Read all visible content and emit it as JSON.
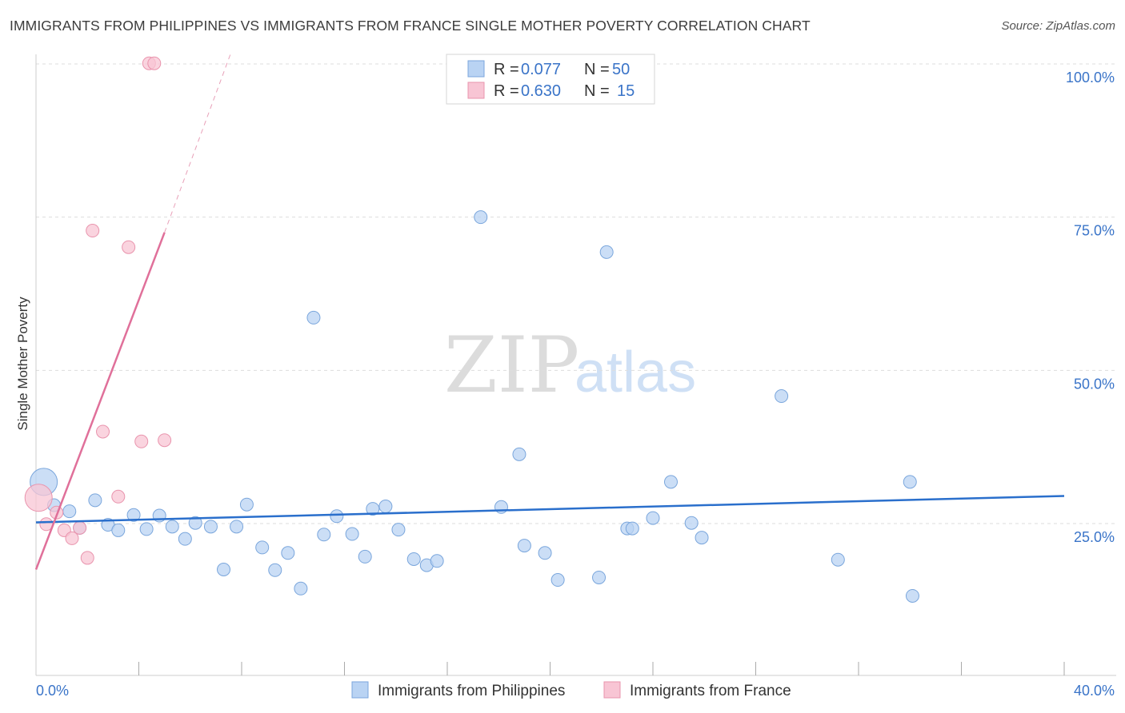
{
  "title": "IMMIGRANTS FROM PHILIPPINES VS IMMIGRANTS FROM FRANCE SINGLE MOTHER POVERTY CORRELATION CHART",
  "source": "Source: ZipAtlas.com",
  "watermark": {
    "zip": "ZIP",
    "atlas": "atlas"
  },
  "colors": {
    "blue_fill": "#b9d3f3",
    "blue_stroke": "#7aa6dc",
    "blue_line": "#2a6fcc",
    "pink_fill": "#f8c5d4",
    "pink_stroke": "#e994ad",
    "pink_line": "#e0709a",
    "grid": "#dddddd",
    "tick_text": "#3a74c8"
  },
  "legend": {
    "row1": {
      "r_label": "R = ",
      "r_value": "0.077",
      "n_label": "N = ",
      "n_value": "50"
    },
    "row2": {
      "r_label": "R = ",
      "r_value": "0.630",
      "n_label": "N = ",
      "n_value": "15"
    }
  },
  "chart_data": {
    "type": "scatter",
    "title": "IMMIGRANTS FROM PHILIPPINES VS IMMIGRANTS FROM FRANCE SINGLE MOTHER POVERTY CORRELATION CHART",
    "xlabel": "",
    "ylabel": "Single Mother Poverty",
    "xlim": [
      0,
      40
    ],
    "ylim": [
      0,
      105
    ],
    "x_tick_labels": [
      "0.0%",
      "40.0%"
    ],
    "y_ticks": [
      {
        "value": 25,
        "label": "25.0%"
      },
      {
        "value": 50,
        "label": "50.0%"
      },
      {
        "value": 75,
        "label": "75.0%"
      },
      {
        "value": 100,
        "label": "100.0%"
      }
    ],
    "series": [
      {
        "name": "Immigrants from Philippines",
        "color": "#b9d3f3",
        "r": 0.077,
        "n": 50,
        "trend": {
          "x": [
            0,
            40
          ],
          "y": [
            25.2,
            29.5
          ]
        },
        "points": [
          {
            "x": 0.3,
            "y": 31.8,
            "big": true
          },
          {
            "x": 0.7,
            "y": 28.0
          },
          {
            "x": 1.3,
            "y": 27.0
          },
          {
            "x": 1.7,
            "y": 24.3
          },
          {
            "x": 2.3,
            "y": 28.8
          },
          {
            "x": 2.8,
            "y": 24.8
          },
          {
            "x": 3.2,
            "y": 23.9
          },
          {
            "x": 3.8,
            "y": 26.4
          },
          {
            "x": 4.3,
            "y": 24.1
          },
          {
            "x": 4.8,
            "y": 26.3
          },
          {
            "x": 5.3,
            "y": 24.5
          },
          {
            "x": 5.8,
            "y": 22.5
          },
          {
            "x": 6.2,
            "y": 25.1
          },
          {
            "x": 6.8,
            "y": 24.5
          },
          {
            "x": 7.3,
            "y": 17.5
          },
          {
            "x": 7.8,
            "y": 24.5
          },
          {
            "x": 8.2,
            "y": 28.1
          },
          {
            "x": 8.8,
            "y": 21.1
          },
          {
            "x": 9.3,
            "y": 17.4
          },
          {
            "x": 9.8,
            "y": 20.2
          },
          {
            "x": 10.3,
            "y": 14.4
          },
          {
            "x": 10.8,
            "y": 58.6
          },
          {
            "x": 11.2,
            "y": 23.2
          },
          {
            "x": 11.7,
            "y": 26.2
          },
          {
            "x": 12.3,
            "y": 23.3
          },
          {
            "x": 12.8,
            "y": 19.6
          },
          {
            "x": 13.1,
            "y": 27.4
          },
          {
            "x": 13.6,
            "y": 27.8
          },
          {
            "x": 14.1,
            "y": 24.0
          },
          {
            "x": 14.7,
            "y": 19.2
          },
          {
            "x": 15.2,
            "y": 18.2
          },
          {
            "x": 15.6,
            "y": 18.9
          },
          {
            "x": 17.3,
            "y": 75.0
          },
          {
            "x": 18.1,
            "y": 27.7
          },
          {
            "x": 18.8,
            "y": 36.3
          },
          {
            "x": 19.0,
            "y": 21.4
          },
          {
            "x": 19.8,
            "y": 20.2
          },
          {
            "x": 20.3,
            "y": 15.8
          },
          {
            "x": 21.9,
            "y": 16.2
          },
          {
            "x": 22.2,
            "y": 69.3
          },
          {
            "x": 23.0,
            "y": 24.2
          },
          {
            "x": 23.2,
            "y": 24.2
          },
          {
            "x": 24.0,
            "y": 25.9
          },
          {
            "x": 24.7,
            "y": 31.8
          },
          {
            "x": 25.5,
            "y": 25.1
          },
          {
            "x": 25.9,
            "y": 22.7
          },
          {
            "x": 29.0,
            "y": 45.8
          },
          {
            "x": 31.2,
            "y": 19.1
          },
          {
            "x": 34.0,
            "y": 31.8
          },
          {
            "x": 34.1,
            "y": 13.2
          }
        ]
      },
      {
        "name": "Immigrants from France",
        "color": "#f8c5d4",
        "r": 0.63,
        "n": 15,
        "trend": {
          "x": [
            0,
            5.0
          ],
          "y": [
            17.5,
            72.5
          ]
        },
        "trend_dashed": {
          "x": [
            5.0,
            7.6
          ],
          "y": [
            72.5,
            102
          ]
        },
        "points": [
          {
            "x": 0.1,
            "y": 29.2,
            "big": true
          },
          {
            "x": 0.4,
            "y": 24.9
          },
          {
            "x": 0.8,
            "y": 26.8
          },
          {
            "x": 1.1,
            "y": 23.9
          },
          {
            "x": 1.4,
            "y": 22.6
          },
          {
            "x": 1.7,
            "y": 24.3
          },
          {
            "x": 2.0,
            "y": 19.4
          },
          {
            "x": 2.2,
            "y": 72.8
          },
          {
            "x": 2.6,
            "y": 40.0
          },
          {
            "x": 3.2,
            "y": 29.4
          },
          {
            "x": 3.6,
            "y": 70.1
          },
          {
            "x": 4.1,
            "y": 38.4
          },
          {
            "x": 4.4,
            "y": 100.1
          },
          {
            "x": 4.6,
            "y": 100.1
          },
          {
            "x": 5.0,
            "y": 38.6
          }
        ]
      }
    ]
  }
}
